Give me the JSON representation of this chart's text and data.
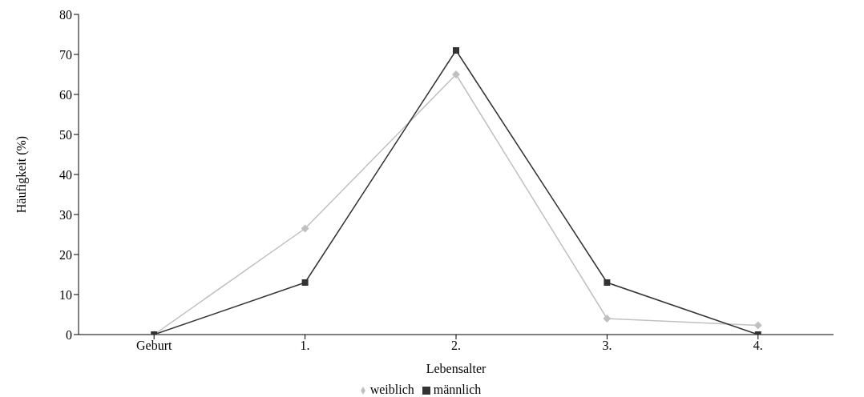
{
  "chart_data": {
    "type": "line",
    "xlabel": "Lebensalter",
    "ylabel": "Häufigkeit (%)",
    "categories": [
      "Geburt",
      "1.",
      "2.",
      "3.",
      "4."
    ],
    "ylim": [
      0,
      80
    ],
    "yticks": [
      0,
      10,
      20,
      30,
      40,
      50,
      60,
      70,
      80
    ],
    "grid": false,
    "legend": "bottom",
    "line_style": "solid",
    "series": [
      {
        "name": "weiblich",
        "color": "#c0c0c0",
        "marker": "diamond",
        "values": [
          0,
          26.5,
          65,
          4,
          2.3
        ]
      },
      {
        "name": "männlich",
        "color": "#333333",
        "marker": "square",
        "values": [
          0,
          13,
          71,
          13,
          0
        ]
      }
    ]
  }
}
